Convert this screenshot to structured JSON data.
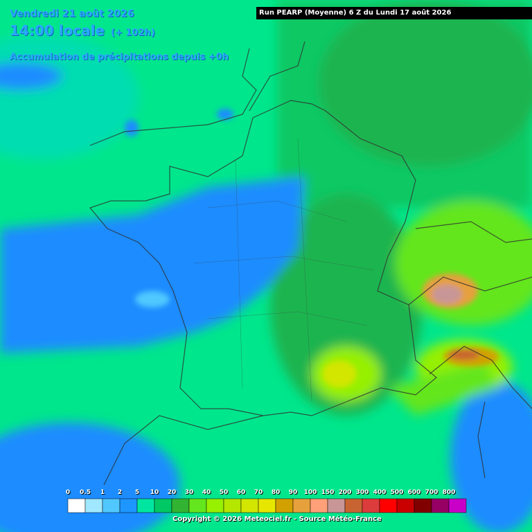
{
  "header": {
    "date": "Vendredi 21 août 2026",
    "time": "14:00 locale",
    "lead": "(+ 102h)",
    "product": "Accumulation de précipitations depuis +0h",
    "run": "Run PEARP (Moyenne) 6 Z du Lundi 17 août 2026"
  },
  "legend": {
    "labels": [
      "0",
      "0.5",
      "1",
      "2",
      "5",
      "10",
      "20",
      "30",
      "40",
      "50",
      "60",
      "70",
      "80",
      "90",
      "100",
      "150",
      "200",
      "300",
      "400",
      "500",
      "600",
      "700",
      "800"
    ],
    "colors": [
      "#ffffff",
      "#a0e8ff",
      "#50c8ff",
      "#1e96ff",
      "#00e6a0",
      "#00c864",
      "#32b432",
      "#64e61e",
      "#96f000",
      "#b4e600",
      "#d2e600",
      "#e6e600",
      "#d2a000",
      "#e6a03c",
      "#ffa078",
      "#c89696",
      "#c86432",
      "#dc3c3c",
      "#ff0000",
      "#c80000",
      "#800000",
      "#960064",
      "#c800c8"
    ]
  },
  "footer": {
    "copyright": "Copyright © 2026 Meteociel.fr - Source Météo-France"
  }
}
